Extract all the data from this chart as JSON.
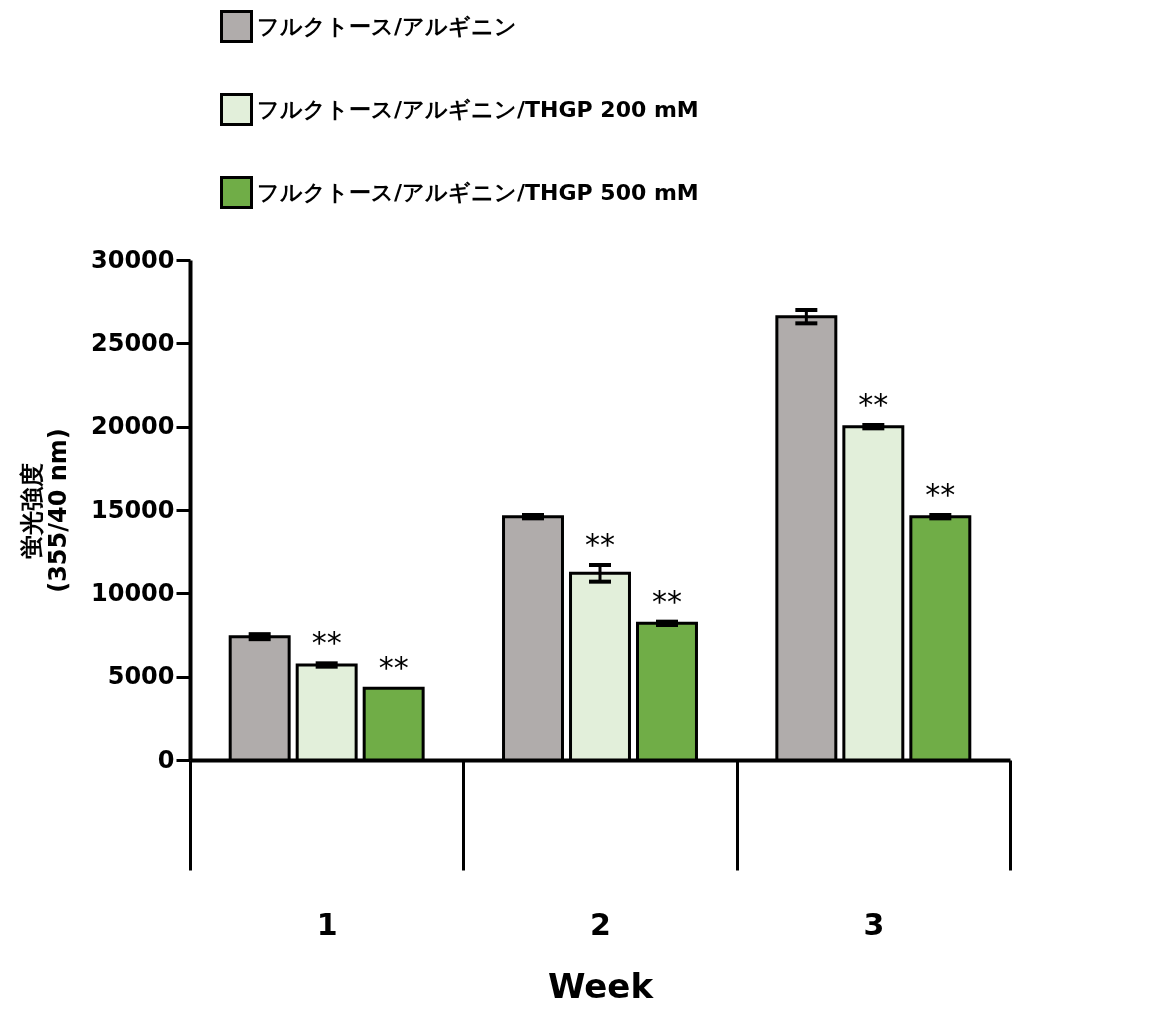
{
  "chart_data": {
    "type": "bar",
    "categories": [
      "1",
      "2",
      "3"
    ],
    "xlabel": "Week",
    "ylabel": "蛍光強度\n(355/40 nm)",
    "ylim": [
      0,
      30000
    ],
    "yticks": [
      0,
      5000,
      10000,
      15000,
      20000,
      25000,
      30000
    ],
    "series": [
      {
        "name": "フルクトース/アルギニン",
        "color": "#b0acab",
        "values": [
          7400,
          14600,
          26600
        ],
        "errors": [
          150,
          100,
          400
        ]
      },
      {
        "name": "フルクトース/アルギニン/THGP 200 mM",
        "color": "#e2efda",
        "values": [
          5700,
          11200,
          20000
        ],
        "errors": [
          100,
          500,
          100
        ],
        "value_labels": [
          "**",
          "**",
          "**"
        ]
      },
      {
        "name": "フルクトース/アルギニン/THGP 500 mM",
        "color": "#70ad47",
        "values": [
          4300,
          8200,
          14600
        ],
        "errors": [
          null,
          100,
          100
        ],
        "value_labels": [
          "**",
          "**",
          "**"
        ]
      }
    ],
    "legend": "top left",
    "grid": false
  }
}
